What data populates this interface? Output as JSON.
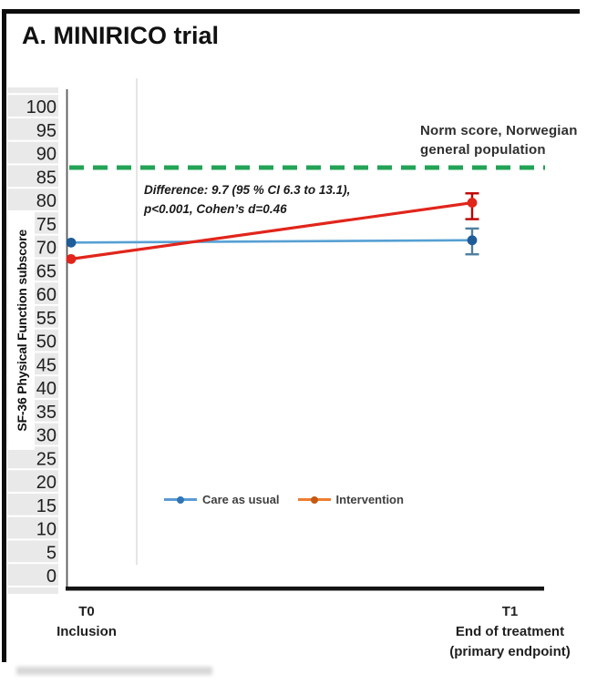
{
  "chart_data": {
    "type": "line",
    "title": "A. MINIRICO trial",
    "ylabel": "SF-36 Physical Function subscore",
    "ylim": [
      0,
      100
    ],
    "ytick_step": 5,
    "grid": false,
    "legend_position": "bottom-inside",
    "categories": [
      {
        "tick": "T0",
        "lines": [
          "Inclusion"
        ]
      },
      {
        "tick": "T1",
        "lines": [
          "End of treatment",
          "(primary endpoint)"
        ]
      }
    ],
    "series": [
      {
        "name": "Care as usual",
        "values": [
          71,
          71.5
        ],
        "error_bars": [
          null,
          {
            "low": 68.5,
            "high": 74
          }
        ],
        "line_color": "#56A0D3",
        "marker_color": "#1F5C99",
        "error_color": "#4E7F9E",
        "legend_line_color": "#5B9BD5",
        "legend_marker_color": "#2E75B6"
      },
      {
        "name": "Intervention",
        "values": [
          67.5,
          79.5
        ],
        "error_bars": [
          null,
          {
            "low": 76,
            "high": 81.5
          }
        ],
        "line_color": "#E1251B",
        "marker_color": "#E1251B",
        "error_color": "#C00000",
        "legend_line_color": "#ED7D31",
        "legend_marker_color": "#C55A11"
      }
    ],
    "reference_line": {
      "value": 87,
      "color": "#22A356",
      "label_lines": [
        "Norm score, Norwegian",
        "general population"
      ]
    },
    "annotation_lines": [
      "Difference: 9.7 (95 % CI 6.3 to 13.1),",
      "p<0.001, Cohen’s d=0.46"
    ]
  }
}
